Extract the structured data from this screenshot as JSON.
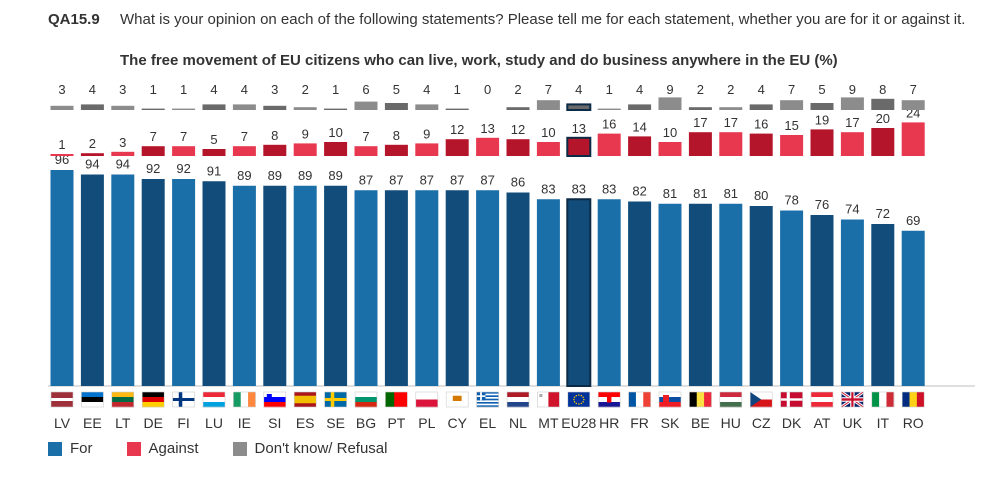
{
  "header": {
    "code": "QA15.9",
    "question": "What is your opinion on each of the following statements? Please tell me for each statement, whether you are for it or against it.",
    "subtitle": "The free movement of EU citizens who can live, work, study and do business anywhere in the EU (%)"
  },
  "colors": {
    "for": "#1b6fa8",
    "for_dark": "#124c7a",
    "against": "#e8384f",
    "against_dark": "#b5152a",
    "dontknow": "#8c8c8c",
    "dontknow_dark": "#6a6a6a",
    "text": "#333333"
  },
  "legend": {
    "for": "For",
    "against": "Against",
    "dontknow": "Don't know/ Refusal"
  },
  "chart_data": {
    "type": "bar",
    "title": "The free movement of EU citizens who can live, work, study and do business anywhere in the EU (%)",
    "xlabel": "",
    "ylabel": "",
    "ylim": [
      0,
      100
    ],
    "categories": [
      "LV",
      "EE",
      "LT",
      "DE",
      "FI",
      "LU",
      "IE",
      "SI",
      "ES",
      "SE",
      "BG",
      "PT",
      "PL",
      "CY",
      "EL",
      "NL",
      "MT",
      "EU28",
      "HR",
      "FR",
      "SK",
      "BE",
      "HU",
      "CZ",
      "DK",
      "AT",
      "UK",
      "IT",
      "RO"
    ],
    "series": [
      {
        "name": "For",
        "values": [
          96,
          94,
          94,
          92,
          92,
          91,
          89,
          89,
          89,
          89,
          87,
          87,
          87,
          87,
          87,
          86,
          83,
          83,
          83,
          82,
          81,
          81,
          81,
          80,
          78,
          76,
          74,
          72,
          69
        ]
      },
      {
        "name": "Against",
        "values": [
          1,
          2,
          3,
          7,
          7,
          5,
          7,
          8,
          9,
          10,
          7,
          8,
          9,
          12,
          13,
          12,
          10,
          13,
          16,
          14,
          10,
          17,
          17,
          16,
          15,
          19,
          17,
          20,
          24
        ]
      },
      {
        "name": "Don't know/ Refusal",
        "values": [
          3,
          4,
          3,
          1,
          1,
          4,
          4,
          3,
          2,
          1,
          6,
          5,
          4,
          1,
          0,
          2,
          7,
          4,
          1,
          4,
          9,
          2,
          2,
          4,
          7,
          5,
          9,
          8,
          7
        ]
      }
    ],
    "highlight": "EU28"
  }
}
